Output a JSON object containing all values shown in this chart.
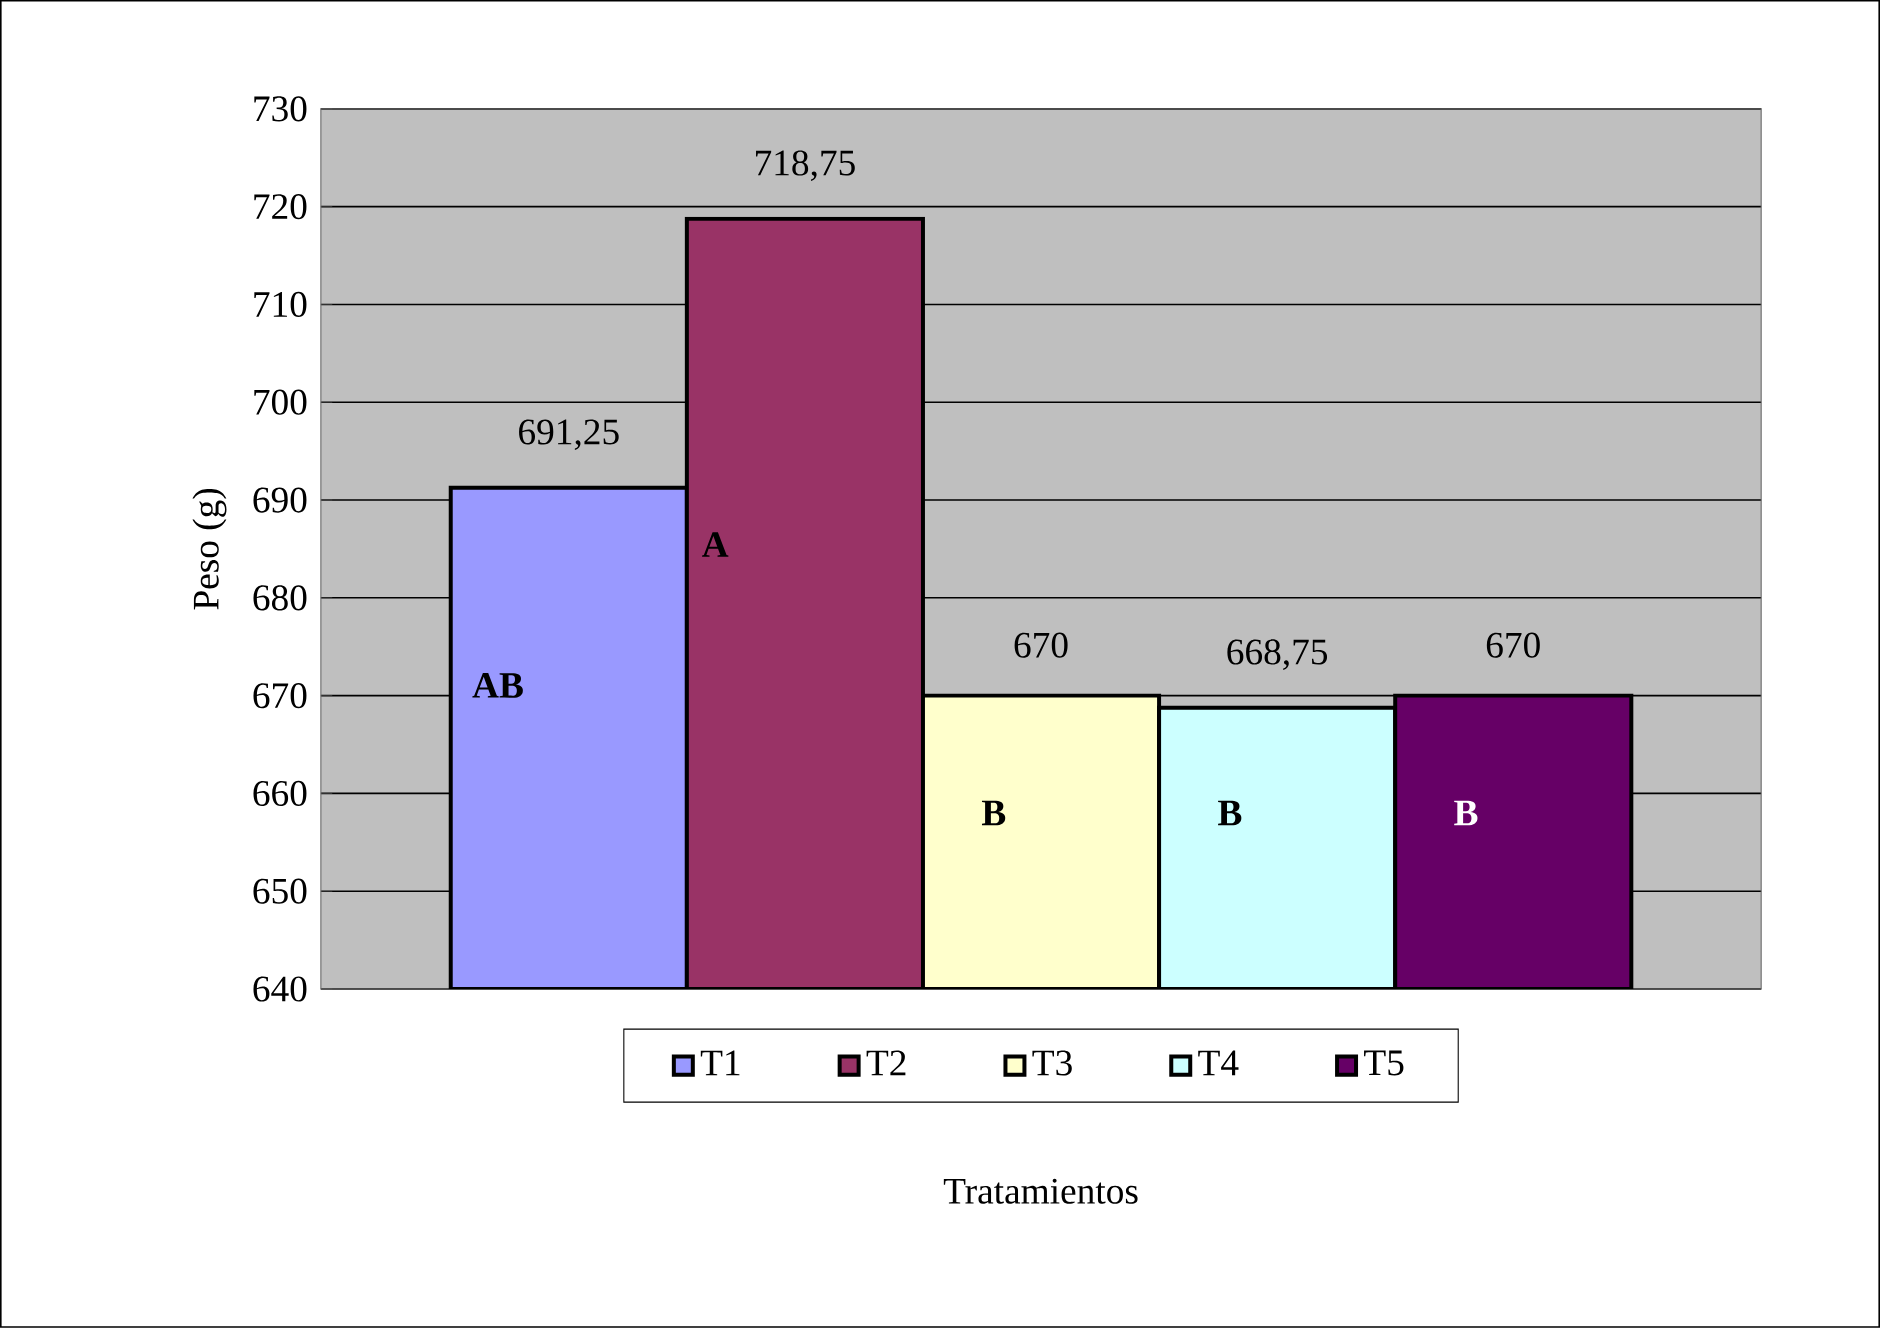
{
  "chart_data": {
    "type": "bar",
    "xlabel": "Tratamientos",
    "ylabel": "Peso (g)",
    "categories": [
      null,
      null,
      null,
      null,
      null
    ],
    "series": [
      {
        "name": "T1",
        "color": "#9999ff",
        "values": [
          691.25,
          null,
          null,
          null,
          null
        ],
        "value_labels": [
          "691,25",
          null,
          null,
          null,
          null
        ]
      },
      {
        "name": "T2",
        "color": "#993366",
        "values": [
          null,
          718.75,
          null,
          null,
          null
        ],
        "value_labels": [
          null,
          "718,75",
          null,
          null,
          null
        ]
      },
      {
        "name": "T3",
        "color": "#ffffcc",
        "values": [
          null,
          null,
          670,
          null,
          null
        ],
        "value_labels": [
          null,
          null,
          "670",
          null,
          null
        ]
      },
      {
        "name": "T4",
        "color": "#ccffff",
        "values": [
          null,
          null,
          null,
          668.75,
          null
        ],
        "value_labels": [
          null,
          null,
          null,
          "668,75",
          null
        ]
      },
      {
        "name": "T5",
        "color": "#660066",
        "values": [
          null,
          null,
          null,
          null,
          670
        ],
        "value_labels": [
          null,
          null,
          null,
          null,
          "670"
        ]
      }
    ],
    "annotations": [
      "AB",
      "A",
      "B",
      "B",
      "B"
    ],
    "ylim": [
      640,
      730
    ],
    "yticks": [
      640,
      650,
      660,
      670,
      680,
      690,
      700,
      710,
      720,
      730
    ],
    "grid": "y",
    "legend": "bottom"
  }
}
